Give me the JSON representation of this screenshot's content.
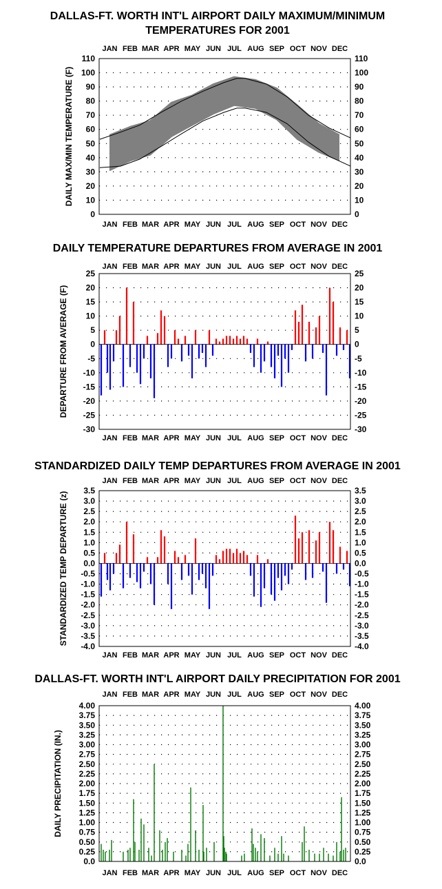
{
  "months": [
    "JAN",
    "FEB",
    "MAR",
    "APR",
    "MAY",
    "JUN",
    "JUL",
    "AUG",
    "SEP",
    "OCT",
    "NOV",
    "DEC"
  ],
  "colors": {
    "positive": "#ff0000",
    "negative": "#0000ff",
    "precip": "#007700",
    "temp": "#808080",
    "normals": "#000000"
  },
  "chart_data": [
    {
      "type": "area",
      "title_lines": [
        "DALLAS-FT. WORTH INT'L AIRPORT DAILY MAXIMUM/MINIMUM",
        "TEMPERATURES FOR 2001"
      ],
      "ylabel": "DAILY MAX/MIN TEMPERATURE (F)",
      "ylim": [
        0,
        110
      ],
      "yticks": [
        "0",
        "10",
        "20",
        "30",
        "40",
        "50",
        "60",
        "70",
        "80",
        "90",
        "100",
        "110"
      ],
      "grid": true,
      "series": [
        {
          "name": "Daily max (monthly approximation)",
          "x": [
            15,
            46,
            74,
            105,
            135,
            166,
            196,
            227,
            258,
            288,
            319,
            349
          ],
          "values": [
            56,
            62,
            66,
            79,
            84,
            92,
            97,
            95,
            89,
            77,
            64,
            56
          ]
        },
        {
          "name": "Daily min (monthly approximation)",
          "x": [
            15,
            46,
            74,
            105,
            135,
            166,
            196,
            227,
            258,
            288,
            319,
            349
          ],
          "values": [
            31,
            38,
            42,
            55,
            63,
            71,
            77,
            75,
            67,
            53,
            44,
            38
          ]
        },
        {
          "name": "Normal max",
          "x": [
            1,
            31,
            59,
            90,
            120,
            151,
            181,
            200,
            212,
            243,
            273,
            304,
            334,
            365
          ],
          "values": [
            53,
            58,
            63,
            72,
            80,
            87,
            93,
            96,
            96,
            92,
            83,
            70,
            61,
            54
          ]
        },
        {
          "name": "Normal min",
          "x": [
            1,
            31,
            59,
            90,
            120,
            151,
            181,
            200,
            212,
            243,
            273,
            304,
            334,
            365
          ],
          "values": [
            33,
            34,
            39,
            48,
            57,
            66,
            72,
            75,
            75,
            72,
            64,
            51,
            41,
            34
          ]
        }
      ]
    },
    {
      "type": "bar",
      "title": "DAILY TEMPERATURE DEPARTURES FROM AVERAGE IN 2001",
      "ylabel": "DEPARTURE FROM AVERAGE  (F)",
      "ylim": [
        -30,
        25
      ],
      "yticks": [
        "-30",
        "-25",
        "-20",
        "-15",
        "-10",
        "-5",
        "0",
        "5",
        "10",
        "15",
        "20",
        "25"
      ],
      "grid": true,
      "x": [
        3,
        8,
        12,
        16,
        21,
        25,
        30,
        35,
        40,
        45,
        50,
        55,
        60,
        65,
        70,
        75,
        80,
        85,
        90,
        95,
        100,
        105,
        110,
        115,
        120,
        125,
        130,
        135,
        140,
        145,
        150,
        155,
        160,
        165,
        170,
        175,
        180,
        185,
        190,
        195,
        200,
        205,
        210,
        215,
        220,
        225,
        230,
        235,
        240,
        245,
        250,
        255,
        260,
        265,
        270,
        275,
        280,
        285,
        290,
        295,
        300,
        305,
        310,
        315,
        320,
        325,
        330,
        335,
        340,
        345,
        350,
        355,
        360,
        364
      ],
      "values": [
        -18,
        5,
        -10,
        -16,
        -6,
        5,
        10,
        -15,
        20,
        -8,
        15,
        -10,
        -14,
        -5,
        3,
        -12,
        -19,
        4,
        12,
        10,
        -8,
        -5,
        5,
        2,
        -6,
        3,
        -4,
        -12,
        5,
        -5,
        -3,
        -8,
        5,
        -4,
        2,
        1,
        2,
        3,
        3,
        2,
        3,
        2,
        3,
        2,
        -3,
        -8,
        2,
        -10,
        -6,
        1,
        -8,
        -12,
        -4,
        -15,
        -5,
        -10,
        -2,
        12,
        8,
        14,
        -6,
        8,
        -5,
        6,
        10,
        -3,
        -18,
        20,
        15,
        -4,
        6,
        -2,
        5,
        -12
      ]
    },
    {
      "type": "bar",
      "title": "STANDARDIZED DAILY TEMP DEPARTURES FROM AVERAGE IN 2001",
      "ylabel": "STANDARDIZED TEMP DEPARTURE  (z)",
      "ylim": [
        -4.0,
        3.5
      ],
      "yticks": [
        "-4.0",
        "-3.5",
        "-3.0",
        "-2.5",
        "-2.0",
        "-1.5",
        "-1.0",
        "-0.5",
        "0.0",
        "0.5",
        "1.0",
        "1.5",
        "2.0",
        "2.5",
        "3.0",
        "3.5"
      ],
      "grid": true,
      "x": [
        3,
        8,
        12,
        16,
        21,
        25,
        30,
        35,
        40,
        45,
        50,
        55,
        60,
        65,
        70,
        75,
        80,
        85,
        90,
        95,
        100,
        105,
        110,
        115,
        120,
        125,
        130,
        135,
        140,
        145,
        150,
        155,
        160,
        165,
        170,
        175,
        180,
        185,
        190,
        195,
        200,
        205,
        210,
        215,
        220,
        225,
        230,
        235,
        240,
        245,
        250,
        255,
        260,
        265,
        270,
        275,
        280,
        285,
        290,
        295,
        300,
        305,
        310,
        315,
        320,
        325,
        330,
        335,
        340,
        345,
        350,
        355,
        360,
        364
      ],
      "values": [
        -1.6,
        0.5,
        -0.8,
        -1.3,
        -0.5,
        0.5,
        0.9,
        -1.2,
        2.0,
        -0.7,
        1.4,
        -0.9,
        -1.2,
        -0.4,
        0.3,
        -1.0,
        -2.0,
        0.3,
        1.6,
        1.3,
        -1.0,
        -2.2,
        0.6,
        0.3,
        -0.8,
        0.4,
        -0.6,
        -1.5,
        1.2,
        -0.8,
        -0.5,
        -1.2,
        -2.2,
        -0.6,
        0.4,
        0.2,
        0.6,
        0.7,
        0.7,
        0.5,
        0.7,
        0.5,
        0.6,
        0.4,
        -0.6,
        -1.6,
        0.4,
        -2.1,
        -1.2,
        0.2,
        -1.5,
        -1.8,
        -0.7,
        -1.3,
        -0.6,
        -1.0,
        -0.3,
        2.3,
        1.2,
        1.5,
        -0.8,
        1.6,
        -0.7,
        1.1,
        1.5,
        -0.4,
        -1.9,
        2.0,
        1.6,
        -0.5,
        0.8,
        -0.3,
        0.6,
        -1.1
      ]
    },
    {
      "type": "bar",
      "title": "DALLAS-FT. WORTH INT'L AIRPORT DAILY PRECIPITATION FOR 2001",
      "ylabel": "DAILY PRECIPITATION (IN.)",
      "ylim": [
        0,
        4.0
      ],
      "yticks": [
        "0.0",
        "0.25",
        "0.50",
        "0.75",
        "1.00",
        "1.25",
        "1.50",
        "1.75",
        "2.00",
        "2.25",
        "2.50",
        "2.75",
        "3.00",
        "3.25",
        "3.50",
        "3.75",
        "4.00"
      ],
      "grid": true,
      "x": [
        3,
        6,
        9,
        15,
        18,
        35,
        42,
        45,
        50,
        52,
        58,
        61,
        65,
        72,
        76,
        80,
        88,
        92,
        96,
        99,
        108,
        120,
        126,
        129,
        133,
        140,
        145,
        151,
        152,
        156,
        167,
        180,
        181,
        182,
        184,
        185,
        207,
        211,
        222,
        224,
        227,
        230,
        235,
        240,
        248,
        255,
        260,
        265,
        268,
        275,
        295,
        298,
        305,
        313,
        320,
        326,
        333,
        340,
        345,
        350,
        352,
        355,
        358
      ],
      "values": [
        0.45,
        0.3,
        0.25,
        0.3,
        0.55,
        0.25,
        0.3,
        0.35,
        1.6,
        0.5,
        0.3,
        1.1,
        0.95,
        0.35,
        0.15,
        2.5,
        0.8,
        0.3,
        0.5,
        0.6,
        0.25,
        0.3,
        0.15,
        0.45,
        1.9,
        0.8,
        0.3,
        1.45,
        0.25,
        0.35,
        0.5,
        4.0,
        0.65,
        0.35,
        0.25,
        0.2,
        0.15,
        0.2,
        0.85,
        0.45,
        0.35,
        0.25,
        0.7,
        0.6,
        0.15,
        0.35,
        0.2,
        0.65,
        0.2,
        0.15,
        0.5,
        0.9,
        0.3,
        0.2,
        0.2,
        0.35,
        0.2,
        0.15,
        0.5,
        0.25,
        1.65,
        0.3,
        0.35
      ]
    }
  ]
}
